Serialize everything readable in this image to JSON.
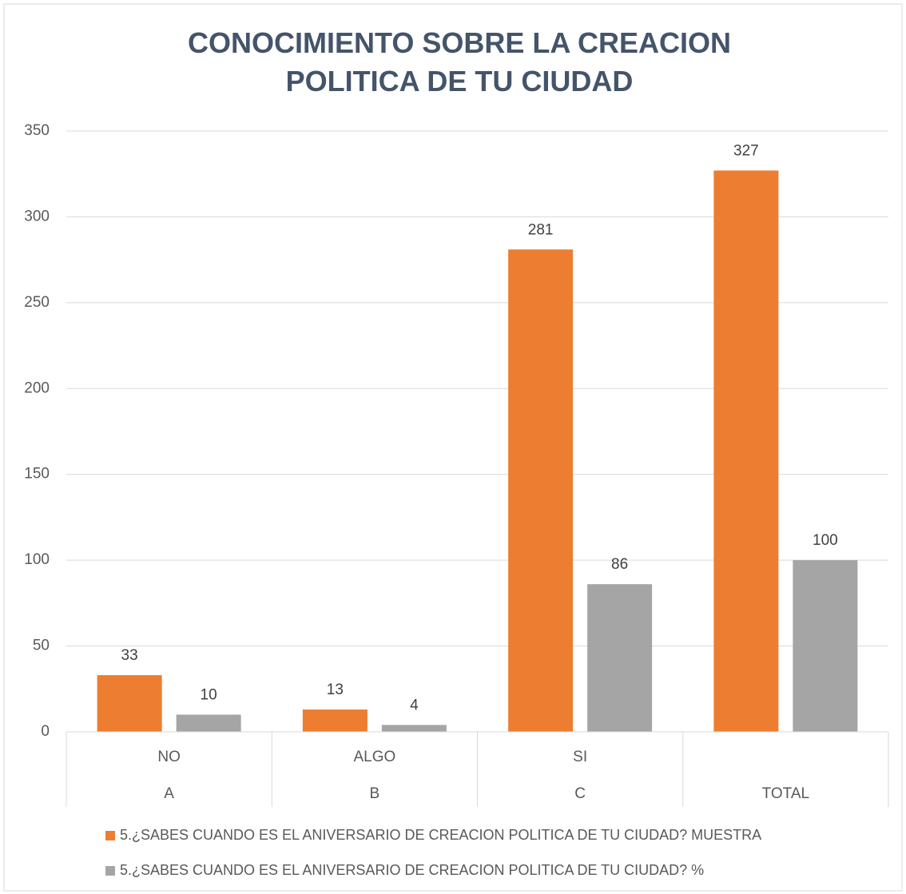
{
  "chart_data": {
    "type": "bar",
    "title": "CONOCIMIENTO SOBRE LA CREACION POLITICA DE TU CIUDAD",
    "categories": [
      "NO",
      "ALGO",
      "SI",
      null
    ],
    "category_groups": [
      "A",
      "B",
      "C",
      "TOTAL"
    ],
    "series": [
      {
        "name": "5.¿SABES CUANDO ES EL ANIVERSARIO DE CREACION POLITICA DE TU CIUDAD? MUESTRA",
        "color": "#ed7d31",
        "values": [
          33,
          13,
          281,
          327
        ]
      },
      {
        "name": "5.¿SABES CUANDO ES EL ANIVERSARIO DE CREACION POLITICA DE TU CIUDAD? %",
        "color": "#a5a5a5",
        "values": [
          10,
          4,
          86,
          100
        ]
      }
    ],
    "ylim": [
      0,
      350
    ],
    "yticks": [
      0,
      50,
      100,
      150,
      200,
      250,
      300,
      350
    ],
    "grid": true,
    "legend": "bottom"
  }
}
